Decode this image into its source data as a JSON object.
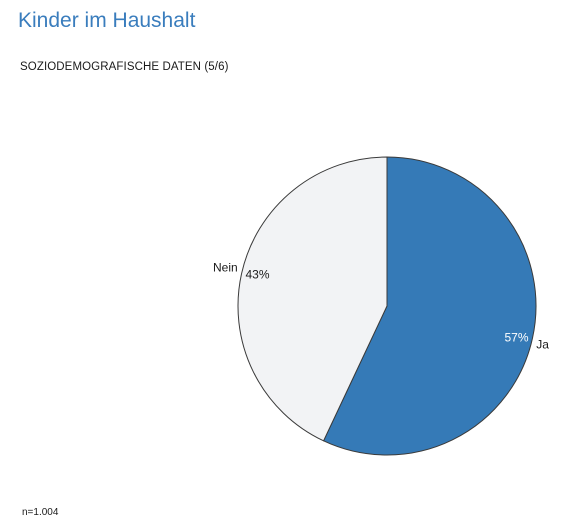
{
  "header": {
    "title": "Kinder im Haushalt",
    "subtitle": "SOZIODEMOGRAFISCHE DATEN (5/6)"
  },
  "footer": {
    "sample_size": "n=1.004"
  },
  "colors": {
    "title": "#3a7dbd",
    "ja": "#357ab7",
    "nein": "#f2f3f5",
    "outline": "#3a3a3a"
  },
  "chart_data": {
    "type": "pie",
    "title": "",
    "slices": [
      {
        "label": "Ja",
        "value": 57,
        "value_label": "57%",
        "color": "#357ab7"
      },
      {
        "label": "Nein",
        "value": 43,
        "value_label": "43%",
        "color": "#f2f3f5"
      }
    ],
    "start_angle": "12 o'clock",
    "direction": "clockwise",
    "legend": "none"
  }
}
